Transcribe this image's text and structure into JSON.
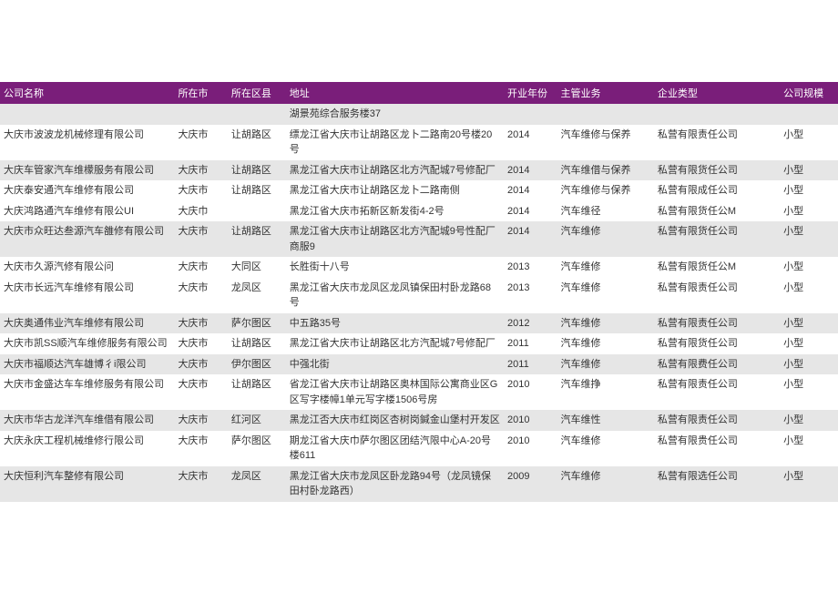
{
  "header_bg": "#7a1e7a",
  "header_fg": "#ffffff",
  "row_shade_bg": "#e6e6e6",
  "columns": [
    "公司名称",
    "所在市",
    "所在区县",
    "地址",
    "开业年份",
    "主管业务",
    "企业类型",
    "公司规模"
  ],
  "pre_rows": [
    {
      "shade": true,
      "cells": [
        "",
        "",
        "",
        "湖景苑综合服务楼37",
        "",
        "",
        "",
        ""
      ]
    }
  ],
  "rows": [
    {
      "shade": false,
      "cells": [
        "大庆市波波龙机械修理有限公司",
        "大庆市",
        "让胡路区",
        "缥龙江省大庆市让胡路区龙卜二路南20号楼20号",
        "2014",
        "汽车维修与保养",
        "私营有限责任公司",
        "小型"
      ]
    },
    {
      "shade": true,
      "cells": [
        "大庆车管家汽车维檬服务有限公司",
        "大庆市",
        "让胡路区",
        "黑龙江省大庆市让胡路区北方汽配城7号修配厂",
        "2014",
        "汽车维借与保养",
        "私营有限货任公司",
        "小型"
      ]
    },
    {
      "shade": false,
      "cells": [
        "大庆泰安通汽车维修有限公司",
        "大庆市",
        "让胡路区",
        "黑龙江省大庆市让胡路区龙卜二路南侧",
        "2014",
        "汽车维修与保养",
        "私营有限成任公司",
        "小型"
      ]
    },
    {
      "shade": false,
      "cells": [
        "大庆鸿路通汽车维修有限公UI",
        "大庆巾",
        "",
        "黑龙江省大庆市拓新区新发街4-2号",
        "2014",
        "汽车维径",
        "私营有限货任公M",
        "小型"
      ]
    },
    {
      "shade": true,
      "cells": [
        "大庆市众旺达叁源汽车雒修有限公司",
        "大庆市",
        "让胡路区",
        "黑龙江省大庆市让胡路区北方汽配城9号性配厂商服9",
        "2014",
        "汽车维修",
        "私营有限货任公司",
        "小型"
      ]
    },
    {
      "shade": false,
      "cells": [
        "大庆市久源汽修有限公问",
        "大庆市",
        "大同区",
        "长胜街十八号",
        "2013",
        "汽车维修",
        "私营有限货任公M",
        "小型"
      ]
    },
    {
      "shade": false,
      "cells": [
        "大庆市长远汽车维修有限公司",
        "大庆市",
        "龙凤区",
        "黑龙江省大庆市龙凤区龙凤镇保田村卧龙路68号",
        "2013",
        "汽车维修",
        "私营有限责任公司",
        "小型"
      ]
    },
    {
      "shade": true,
      "cells": [
        "大庆奥通伟业汽车维修有限公司",
        "大庆市",
        "萨尔图区",
        "中五路35号",
        "2012",
        "汽车维修",
        "私营有限责任公司",
        "小型"
      ]
    },
    {
      "shade": false,
      "cells": [
        "大庆市凯SS顺汽车维修服务有限公司",
        "大庆市",
        "让胡路区",
        "黑龙江省大庆市让胡路区北方汽配城7号修配厂",
        "2011",
        "汽车维修",
        "私营有限货任公司",
        "小型"
      ]
    },
    {
      "shade": true,
      "cells": [
        "大庆市福顺达汽车雄博彳i限公司",
        "大庆市",
        "伊尔图区",
        "中强北街",
        "2011",
        "汽车维修",
        "私营有限费任公司",
        "小型"
      ]
    },
    {
      "shade": false,
      "cells": [
        "大庆市金盛达车车维修服务有限公司",
        "大庆市",
        "让胡路区",
        "省龙江省大庆市让胡路区奥林国际公寓商业区G区写字楼幛1单元写字楼1506号房",
        "2010",
        "汽车维挣",
        "私营有限责任公司",
        "小型"
      ]
    },
    {
      "shade": true,
      "cells": [
        "大庆市华古龙洋汽车维借有限公司",
        "大庆市",
        "红河区",
        "黑龙江否大庆市红岗区杏树岗鍼金山堡村开发区",
        "2010",
        "汽车维性",
        "私营有限责任公司",
        "小型"
      ]
    },
    {
      "shade": false,
      "cells": [
        "大庆永庆工程机械维修行限公司",
        "大庆市",
        "萨尔图区",
        "期龙江省大庆巾萨尔图区团结汽限中心A-20号楼611",
        "2010",
        "汽车维修",
        "私营有限贵任公司",
        "小型"
      ]
    },
    {
      "shade": true,
      "cells": [
        "大庆恒利汽车整修有限公司",
        "大庆市",
        "龙凤区",
        "黑龙江省大庆市龙凤区卧龙路94号（龙凤镜保田村卧龙路西）",
        "2009",
        "汽车维修",
        "私营有限选任公司",
        "小型"
      ]
    }
  ]
}
